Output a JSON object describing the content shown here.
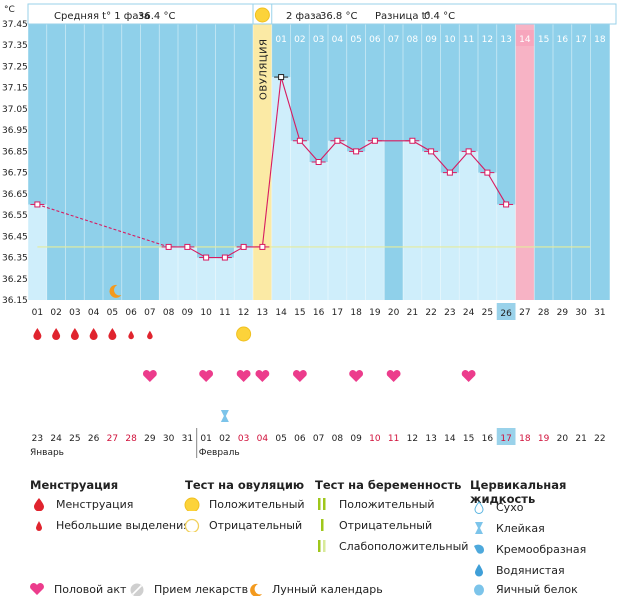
{
  "header": {
    "unit": "°C",
    "phase1_label": "Средняя t° 1 фаза",
    "phase1_value": "36.4 °C",
    "phase2_label": "2 фаза",
    "phase2_value": "36.8 °C",
    "diff_label": "Разница t°",
    "diff_value": "0.4 °C",
    "ovulation_label": "ОВУЛЯЦИЯ"
  },
  "colors": {
    "dark_blue": "#8fd0ea",
    "light_blue": "#cfeefb",
    "ovulation": "#fbeaa5",
    "red_day": "#f7b3c5",
    "line": "#d81b60",
    "coverline": "#e4ec9c"
  },
  "chart_data": {
    "type": "line",
    "ylabel": "°C",
    "ylim": [
      36.15,
      37.45
    ],
    "yticks": [
      "36.15",
      "36.25",
      "36.35",
      "36.45",
      "36.55",
      "36.65",
      "36.75",
      "36.85",
      "36.95",
      "37.05",
      "37.15",
      "37.25",
      "37.35",
      "37.45"
    ],
    "cycle_days": [
      "01",
      "02",
      "03",
      "04",
      "05",
      "06",
      "07",
      "08",
      "09",
      "10",
      "11",
      "12",
      "13",
      "14",
      "15",
      "16",
      "17",
      "18",
      "19",
      "20",
      "21",
      "22",
      "23",
      "24",
      "25",
      "26",
      "27",
      "28",
      "29",
      "30",
      "31"
    ],
    "top_days": [
      "01",
      "02",
      "03",
      "04",
      "05",
      "06",
      "07",
      "08",
      "09",
      "10",
      "11",
      "12",
      "13",
      "14",
      "15",
      "16",
      "17",
      "18"
    ],
    "temperatures": [
      36.6,
      null,
      null,
      null,
      null,
      null,
      null,
      36.4,
      36.4,
      36.35,
      36.35,
      36.4,
      36.4,
      37.2,
      36.9,
      36.8,
      36.9,
      36.85,
      36.9,
      null,
      36.9,
      36.85,
      36.75,
      36.85,
      36.75,
      36.6,
      null,
      null,
      null,
      null,
      null
    ],
    "coverline": 36.4,
    "ovulation_day": 13,
    "current_day": 26,
    "dates": [
      "23",
      "24",
      "25",
      "26",
      "27",
      "28",
      "29",
      "30",
      "31",
      "01",
      "02",
      "03",
      "04",
      "05",
      "06",
      "07",
      "08",
      "09",
      "10",
      "11",
      "12",
      "13",
      "14",
      "15",
      "16",
      "17",
      "18",
      "19",
      "20",
      "21",
      "22"
    ],
    "red_dates": [
      5,
      6,
      12,
      13,
      19,
      20,
      26,
      27,
      28
    ],
    "month_1": "Январь",
    "month_2": "Февраль",
    "menstruation_big": [
      1,
      2,
      3,
      4,
      5
    ],
    "menstruation_small": [
      6,
      7
    ],
    "ovulation_test_positive": [
      12
    ],
    "intercourse": [
      7,
      10,
      12,
      13,
      15,
      18,
      20,
      24
    ],
    "sticky": [
      11
    ],
    "moon": [
      5
    ]
  },
  "legend": {
    "menstruation": {
      "title": "Менструация",
      "items": [
        "Менструация",
        "Небольшие выделения"
      ]
    },
    "ovulation_test": {
      "title": "Тест на овуляцию",
      "items": [
        "Положительный",
        "Отрицательный"
      ]
    },
    "pregnancy_test": {
      "title": "Тест на беременность",
      "items": [
        "Положительный",
        "Отрицательный",
        "Слабоположительный"
      ]
    },
    "cervical": {
      "title": "Цервикальная жидкость",
      "items": [
        "Сухо",
        "Клейкая",
        "Кремообразная",
        "Водянистая",
        "Яичный белок"
      ]
    },
    "bottom": [
      "Половой акт",
      "Прием лекарств",
      "Лунный календарь"
    ]
  }
}
